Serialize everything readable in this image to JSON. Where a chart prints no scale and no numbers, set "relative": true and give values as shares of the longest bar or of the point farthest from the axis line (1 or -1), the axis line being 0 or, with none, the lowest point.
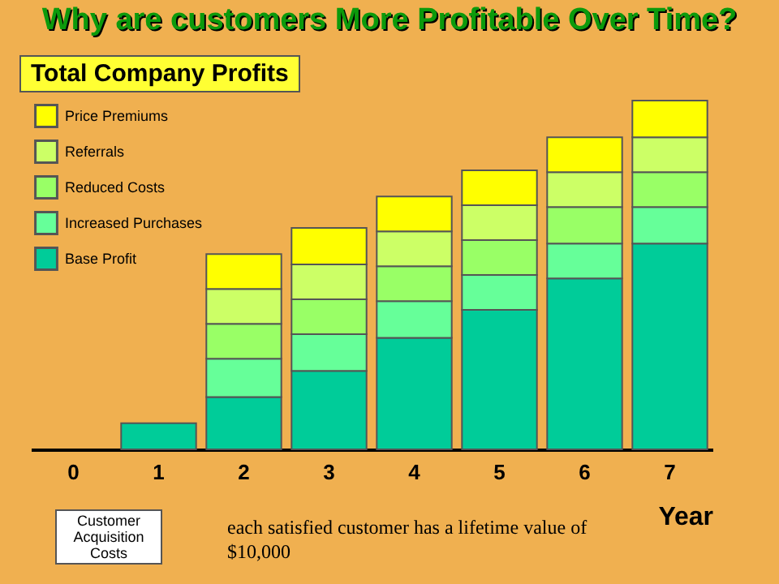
{
  "chart_data": {
    "type": "bar",
    "title": "Why are customers More Profitable Over Time?",
    "subtitle": "Total Company Profits",
    "xlabel": "Year",
    "categories": [
      "0",
      "1",
      "2",
      "3",
      "4",
      "5",
      "6",
      "7"
    ],
    "stacked": true,
    "relative": true,
    "legend": "top left",
    "annotations": [
      "Customer Acquisition Costs",
      "each satisfied customer has a lifetime value of $10,000"
    ],
    "series": [
      {
        "name": "Base Profit",
        "color": "#00cc99",
        "values": [
          null,
          0.075,
          0.15,
          0.225,
          0.32,
          0.4,
          0.49,
          0.59
        ]
      },
      {
        "name": "Increased Purchases",
        "color": "#66ff99",
        "values": [
          null,
          null,
          0.11,
          0.105,
          0.105,
          0.1,
          0.1,
          0.105
        ]
      },
      {
        "name": "Reduced Costs",
        "color": "#99ff66",
        "values": [
          null,
          null,
          0.1,
          0.1,
          0.1,
          0.1,
          0.105,
          0.1
        ]
      },
      {
        "name": "Referrals",
        "color": "#ccff66",
        "values": [
          null,
          null,
          0.1,
          0.1,
          0.1,
          0.1,
          0.1,
          0.1
        ]
      },
      {
        "name": "Price Premiums",
        "color": "#ffff00",
        "values": [
          null,
          null,
          0.1,
          0.105,
          0.1,
          0.1,
          0.1,
          0.105
        ]
      }
    ]
  }
}
